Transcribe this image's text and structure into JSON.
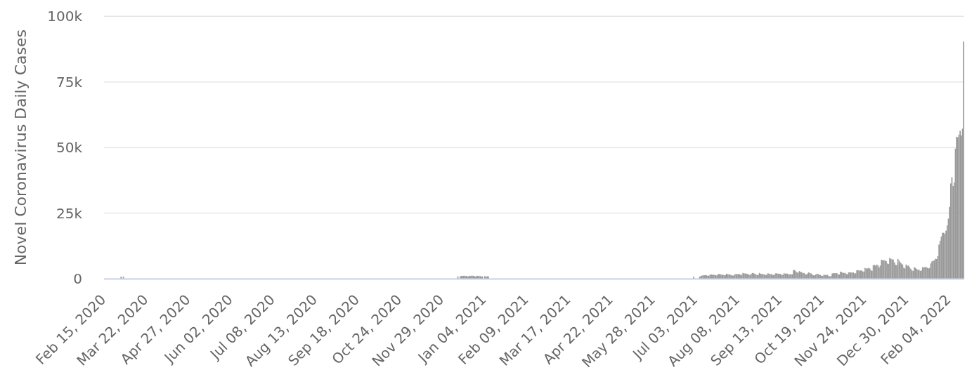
{
  "chart_data": {
    "type": "bar",
    "ylabel": "Novel Coronavirus Daily Cases",
    "color": "#999999",
    "grid": "y",
    "xlim": [
      "2020-02-14T12:00",
      "2022-02-16T12:00"
    ],
    "xticks": [
      {
        "value": "2020-02-15",
        "label": "Feb 15, 2020"
      },
      {
        "value": "2020-03-22",
        "label": "Mar 22, 2020"
      },
      {
        "value": "2020-04-27",
        "label": "Apr 27, 2020"
      },
      {
        "value": "2020-06-02",
        "label": "Jun 02, 2020"
      },
      {
        "value": "2020-07-08",
        "label": "Jul 08, 2020"
      },
      {
        "value": "2020-08-13",
        "label": "Aug 13, 2020"
      },
      {
        "value": "2020-09-18",
        "label": "Sep 18, 2020"
      },
      {
        "value": "2020-10-24",
        "label": "Oct 24, 2020"
      },
      {
        "value": "2020-11-29",
        "label": "Nov 29, 2020"
      },
      {
        "value": "2021-01-04",
        "label": "Jan 04, 2021"
      },
      {
        "value": "2021-02-09",
        "label": "Feb 09, 2021"
      },
      {
        "value": "2021-03-17",
        "label": "Mar 17, 2021"
      },
      {
        "value": "2021-04-22",
        "label": "Apr 22, 2021"
      },
      {
        "value": "2021-05-28",
        "label": "May 28, 2021"
      },
      {
        "value": "2021-07-03",
        "label": "Jul 03, 2021"
      },
      {
        "value": "2021-08-08",
        "label": "Aug 08, 2021"
      },
      {
        "value": "2021-09-13",
        "label": "Sep 13, 2021"
      },
      {
        "value": "2021-10-19",
        "label": "Oct 19, 2021"
      },
      {
        "value": "2021-11-24",
        "label": "Nov 24, 2021"
      },
      {
        "value": "2021-12-30",
        "label": "Dec 30, 2021"
      },
      {
        "value": "2022-02-04",
        "label": "Feb 04, 2022"
      }
    ],
    "ylim": [
      0,
      100000
    ],
    "yticks": [
      0,
      {
        "value": 25000,
        "label": "25k"
      },
      {
        "value": 50000,
        "label": "50k"
      },
      {
        "value": 75000,
        "label": "75k"
      },
      {
        "value": 100000,
        "label": "100k"
      }
    ],
    "x": [
      "2020-02-29",
      "2020-03-02",
      "2020-12-12",
      "2020-12-14",
      "2020-12-15",
      "2020-12-16",
      "2020-12-17",
      "2020-12-18",
      "2020-12-19",
      "2020-12-20",
      "2020-12-21",
      "2020-12-22",
      "2020-12-23",
      "2020-12-24",
      "2020-12-25",
      "2020-12-26",
      "2020-12-27",
      "2020-12-28",
      "2020-12-29",
      "2020-12-30",
      "2020-12-31",
      "2021-01-01",
      "2021-01-02",
      "2021-01-04",
      "2021-01-05",
      "2021-01-06",
      "2021-01-07",
      "2021-07-01",
      "2021-07-06",
      "2021-07-07",
      "2021-07-08",
      "2021-07-09",
      "2021-07-10",
      "2021-07-11",
      "2021-07-12",
      "2021-07-13",
      "2021-07-14",
      "2021-07-15",
      "2021-07-16",
      "2021-07-17",
      "2021-07-18",
      "2021-07-19",
      "2021-07-20",
      "2021-07-21",
      "2021-07-22",
      "2021-07-23",
      "2021-07-24",
      "2021-07-25",
      "2021-07-26",
      "2021-07-27",
      "2021-07-28",
      "2021-07-29",
      "2021-07-30",
      "2021-07-31",
      "2021-08-01",
      "2021-08-02",
      "2021-08-03",
      "2021-08-04",
      "2021-08-05",
      "2021-08-06",
      "2021-08-07",
      "2021-08-08",
      "2021-08-09",
      "2021-08-10",
      "2021-08-11",
      "2021-08-12",
      "2021-08-13",
      "2021-08-14",
      "2021-08-15",
      "2021-08-16",
      "2021-08-17",
      "2021-08-18",
      "2021-08-19",
      "2021-08-20",
      "2021-08-21",
      "2021-08-22",
      "2021-08-23",
      "2021-08-24",
      "2021-08-25",
      "2021-08-26",
      "2021-08-27",
      "2021-08-28",
      "2021-08-29",
      "2021-08-30",
      "2021-08-31",
      "2021-09-01",
      "2021-09-02",
      "2021-09-03",
      "2021-09-04",
      "2021-09-05",
      "2021-09-06",
      "2021-09-07",
      "2021-09-08",
      "2021-09-09",
      "2021-09-10",
      "2021-09-11",
      "2021-09-12",
      "2021-09-13",
      "2021-09-14",
      "2021-09-15",
      "2021-09-16",
      "2021-09-17",
      "2021-09-18",
      "2021-09-19",
      "2021-09-20",
      "2021-09-21",
      "2021-09-22",
      "2021-09-23",
      "2021-09-24",
      "2021-09-25",
      "2021-09-26",
      "2021-09-27",
      "2021-09-28",
      "2021-09-29",
      "2021-09-30",
      "2021-10-01",
      "2021-10-02",
      "2021-10-03",
      "2021-10-04",
      "2021-10-05",
      "2021-10-06",
      "2021-10-07",
      "2021-10-08",
      "2021-10-09",
      "2021-10-10",
      "2021-10-11",
      "2021-10-12",
      "2021-10-13",
      "2021-10-14",
      "2021-10-15",
      "2021-10-16",
      "2021-10-17",
      "2021-10-18",
      "2021-10-19",
      "2021-10-20",
      "2021-10-21",
      "2021-10-22",
      "2021-10-23",
      "2021-10-24",
      "2021-10-25",
      "2021-10-26",
      "2021-10-27",
      "2021-10-28",
      "2021-10-29",
      "2021-10-30",
      "2021-10-31",
      "2021-11-01",
      "2021-11-02",
      "2021-11-03",
      "2021-11-04",
      "2021-11-05",
      "2021-11-06",
      "2021-11-07",
      "2021-11-08",
      "2021-11-09",
      "2021-11-10",
      "2021-11-11",
      "2021-11-12",
      "2021-11-13",
      "2021-11-14",
      "2021-11-15",
      "2021-11-16",
      "2021-11-17",
      "2021-11-18",
      "2021-11-19",
      "2021-11-20",
      "2021-11-21",
      "2021-11-22",
      "2021-11-23",
      "2021-11-24",
      "2021-11-25",
      "2021-11-26",
      "2021-11-27",
      "2021-11-28",
      "2021-11-29",
      "2021-11-30",
      "2021-12-01",
      "2021-12-02",
      "2021-12-03",
      "2021-12-04",
      "2021-12-05",
      "2021-12-06",
      "2021-12-07",
      "2021-12-08",
      "2021-12-09",
      "2021-12-10",
      "2021-12-11",
      "2021-12-12",
      "2021-12-13",
      "2021-12-14",
      "2021-12-15",
      "2021-12-16",
      "2021-12-17",
      "2021-12-18",
      "2021-12-19",
      "2021-12-20",
      "2021-12-21",
      "2021-12-22",
      "2021-12-23",
      "2021-12-24",
      "2021-12-25",
      "2021-12-26",
      "2021-12-27",
      "2021-12-28",
      "2021-12-29",
      "2021-12-30",
      "2021-12-31",
      "2022-01-01",
      "2022-01-02",
      "2022-01-03",
      "2022-01-04",
      "2022-01-05",
      "2022-01-06",
      "2022-01-07",
      "2022-01-08",
      "2022-01-09",
      "2022-01-10",
      "2022-01-11",
      "2022-01-12",
      "2022-01-13",
      "2022-01-14",
      "2022-01-15",
      "2022-01-16",
      "2022-01-17",
      "2022-01-18",
      "2022-01-19",
      "2022-01-20",
      "2022-01-21",
      "2022-01-22",
      "2022-01-23",
      "2022-01-24",
      "2022-01-25",
      "2022-01-26",
      "2022-01-27",
      "2022-01-28",
      "2022-01-29",
      "2022-01-30",
      "2022-01-31",
      "2022-02-01",
      "2022-02-02",
      "2022-02-03",
      "2022-02-04",
      "2022-02-05",
      "2022-02-06",
      "2022-02-07",
      "2022-02-08",
      "2022-02-09",
      "2022-02-10",
      "2022-02-11",
      "2022-02-12",
      "2022-02-13",
      "2022-02-14",
      "2022-02-15",
      "2022-02-16"
    ],
    "values": [
      800,
      800,
      900,
      900,
      1100,
      1000,
      1100,
      1100,
      1100,
      900,
      900,
      1100,
      1000,
      1200,
      1100,
      1000,
      800,
      1000,
      1100,
      1000,
      1000,
      800,
      900,
      1000,
      800,
      900,
      900,
      800,
      800,
      1000,
      1200,
      1300,
      1300,
      1400,
      1300,
      1100,
      1200,
      1600,
      1600,
      1500,
      1500,
      1500,
      1300,
      1300,
      1800,
      1800,
      1600,
      1600,
      1500,
      1300,
      1400,
      1900,
      1700,
      1700,
      1500,
      1400,
      1200,
      1200,
      1700,
      1800,
      1700,
      1800,
      1700,
      1500,
      1500,
      2200,
      2000,
      2000,
      1900,
      1800,
      1600,
      1400,
      1800,
      2200,
      2100,
      1900,
      1600,
      1400,
      1500,
      2200,
      1900,
      1800,
      1800,
      1600,
      1500,
      1400,
      2000,
      2000,
      1700,
      1800,
      1500,
      1400,
      1600,
      2100,
      2000,
      1900,
      1900,
      1800,
      1400,
      1500,
      2100,
      1900,
      2000,
      1900,
      1600,
      1700,
      1700,
      1700,
      3300,
      3300,
      2800,
      2400,
      2300,
      2900,
      2600,
      2500,
      2100,
      2200,
      1700,
      1600,
      2000,
      2400,
      2200,
      2000,
      1600,
      1300,
      1300,
      1600,
      1900,
      1700,
      1600,
      1400,
      1100,
      1100,
      1600,
      1400,
      1400,
      1500,
      1000,
      900,
      1000,
      2000,
      2100,
      2100,
      2100,
      2100,
      1700,
      1600,
      2700,
      2500,
      2300,
      2200,
      2200,
      1800,
      1700,
      2400,
      2500,
      2400,
      2300,
      2400,
      2000,
      2100,
      3200,
      3300,
      3000,
      3200,
      3100,
      2800,
      2700,
      4100,
      3900,
      3900,
      4100,
      3900,
      3300,
      3000,
      5100,
      5300,
      4900,
      5400,
      5100,
      4300,
      5000,
      7200,
      7100,
      7000,
      7000,
      6700,
      5800,
      5600,
      7900,
      7600,
      7400,
      7300,
      6200,
      5300,
      5200,
      7500,
      6900,
      6200,
      5800,
      5400,
      4200,
      3900,
      5400,
      4900,
      5000,
      4400,
      3800,
      3100,
      3000,
      4400,
      4100,
      3700,
      3400,
      3400,
      3000,
      3100,
      4400,
      4200,
      4500,
      4400,
      4200,
      3900,
      4100,
      5800,
      6600,
      6800,
      7000,
      7600,
      7500,
      8600,
      13000,
      14500,
      16100,
      17500,
      17500,
      17100,
      18300,
      20300,
      22900,
      27400,
      36300,
      38700,
      35300,
      36700,
      49600,
      54100,
      53900,
      54900,
      56400,
      54600,
      57200,
      90400
    ]
  }
}
